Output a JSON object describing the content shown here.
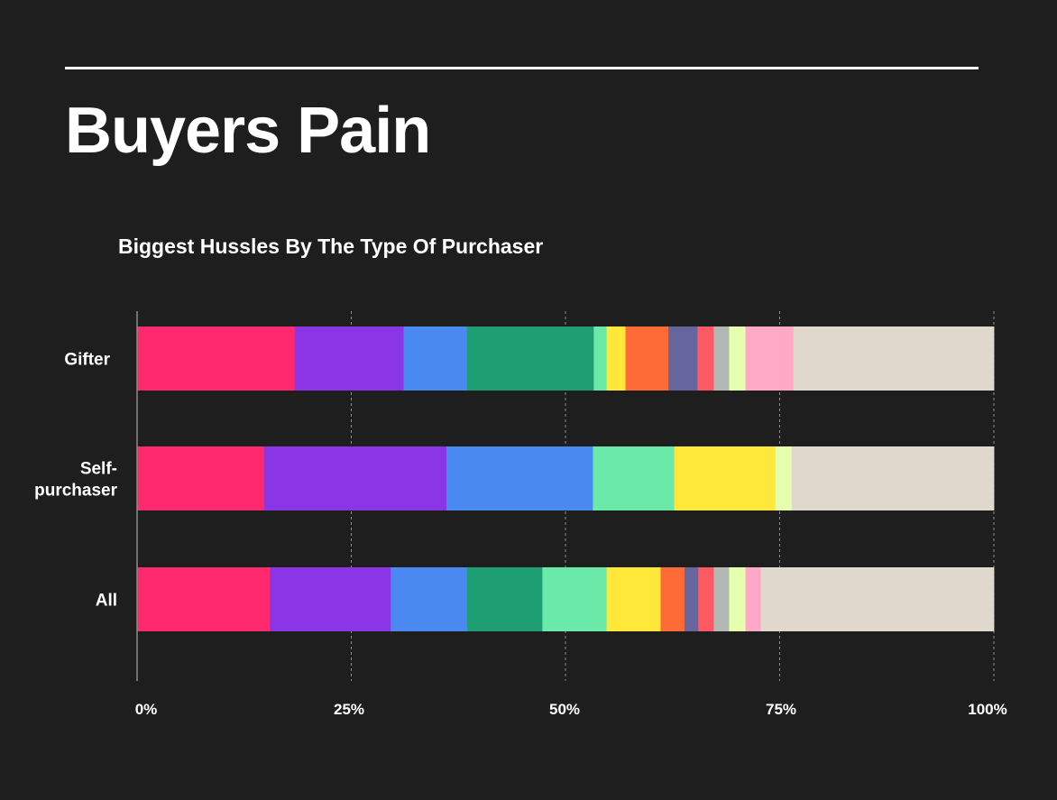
{
  "header": {
    "title": "Buyers Pain"
  },
  "chart_data": {
    "type": "bar",
    "orientation": "horizontal",
    "stacked": true,
    "title": "Biggest Hussles By The Type Of Purchaser",
    "categories": [
      {
        "label_lines": [
          "Gifter"
        ]
      },
      {
        "label_lines": [
          "Self-",
          "purchaser"
        ]
      },
      {
        "label_lines": [
          "All"
        ]
      }
    ],
    "x_ticks": [
      "0%",
      "25%",
      "50%",
      "75%",
      "100%"
    ],
    "xlim": [
      0,
      100
    ],
    "grid": "vertical dotted",
    "series": [
      {
        "color": "#ff2a6d",
        "values": [
          18.4,
          14.8,
          15.5
        ]
      },
      {
        "color": "#8a36e6",
        "values": [
          12.7,
          21.3,
          14.1
        ]
      },
      {
        "color": "#4a8af0",
        "values": [
          7.4,
          17.1,
          8.9
        ]
      },
      {
        "color": "#1f9e74",
        "values": [
          14.8,
          0,
          8.8
        ]
      },
      {
        "color": "#6be9a8",
        "values": [
          1.5,
          9.5,
          7.5
        ]
      },
      {
        "color": "#ffe83a",
        "values": [
          2.2,
          11.8,
          6.3
        ]
      },
      {
        "color": "#ff6b36",
        "values": [
          5.0,
          0,
          2.8
        ]
      },
      {
        "color": "#66669e",
        "values": [
          3.4,
          0,
          1.6
        ]
      },
      {
        "color": "#ff5a64",
        "values": [
          1.9,
          0,
          1.8
        ]
      },
      {
        "color": "#b4b8b2",
        "values": [
          1.8,
          0,
          1.8
        ]
      },
      {
        "color": "#e4ffae",
        "values": [
          1.9,
          1.9,
          1.9
        ]
      },
      {
        "color": "#ffa9c6",
        "values": [
          5.6,
          0,
          1.8
        ]
      },
      {
        "color": "#e0d8cc",
        "values": [
          23.4,
          23.6,
          27.2
        ]
      }
    ]
  }
}
